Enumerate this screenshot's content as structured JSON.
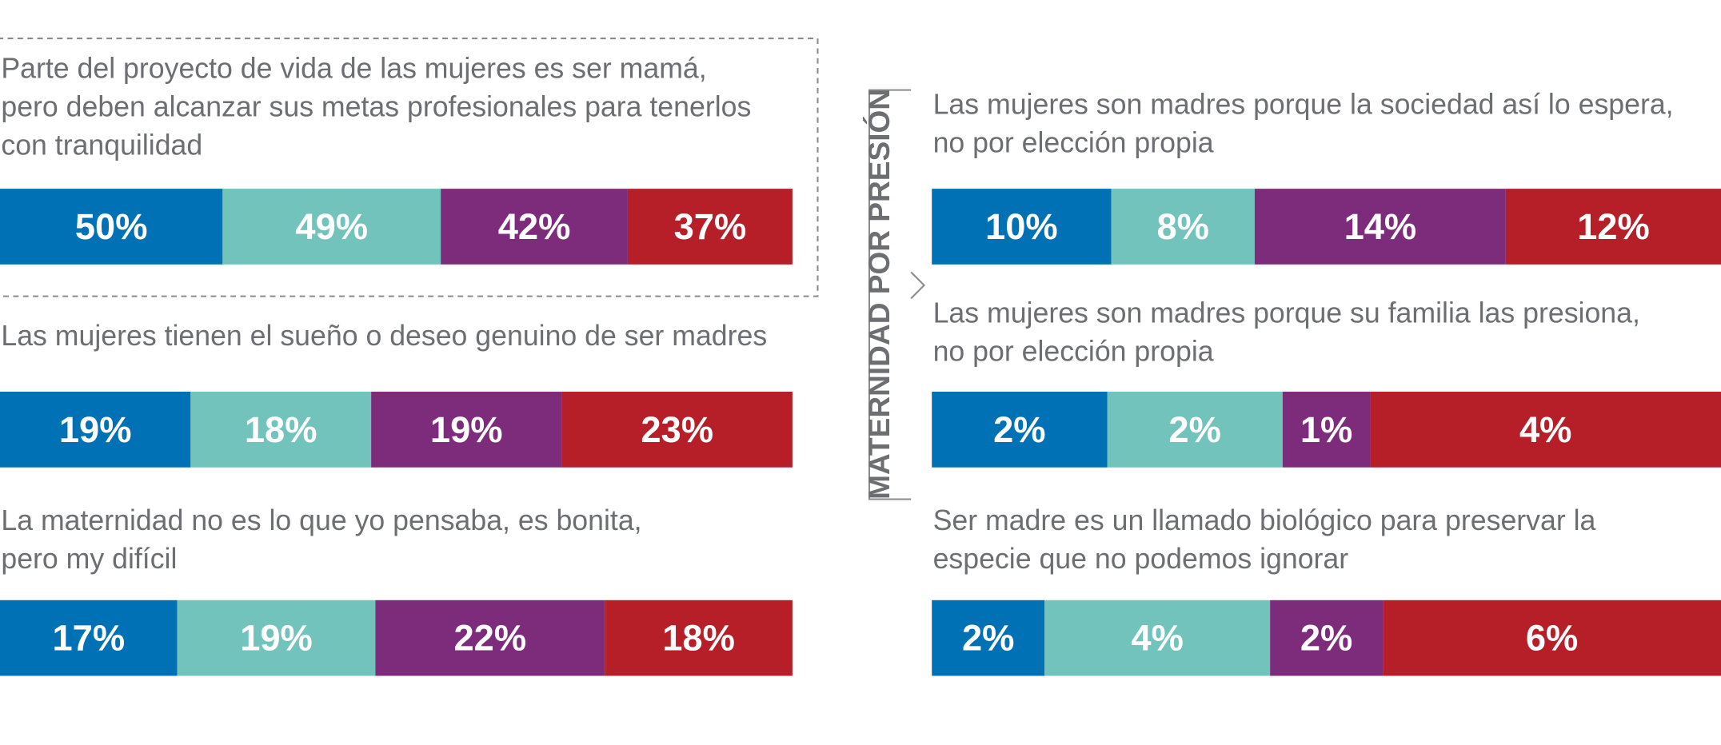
{
  "chart_data": {
    "type": "stacked-bar",
    "colors": [
      "#0071b4",
      "#72c3bc",
      "#7d2c7c",
      "#b61f27"
    ],
    "annotation": "MATERNIDAD POR PRESIÓN",
    "rows": [
      {
        "title": [
          "Parte del proyecto de vida de las mujeres es ser mamá,",
          "pero deben alcanzar sus metas profesionales para tenerlos",
          "con tranquilidad"
        ],
        "values": [
          50,
          49,
          42,
          37
        ],
        "value_labels": [
          "50%",
          "49%",
          "42%",
          "37%"
        ]
      },
      {
        "title": [
          "Las mujeres tienen el sueño o deseo genuino de ser madres"
        ],
        "values": [
          19,
          18,
          19,
          23
        ],
        "value_labels": [
          "19%",
          "18%",
          "19%",
          "23%"
        ]
      },
      {
        "title": [
          "La maternidad no es lo que yo pensaba, es bonita,",
          "pero my difícil"
        ],
        "values": [
          17,
          19,
          22,
          18
        ],
        "value_labels": [
          "17%",
          "19%",
          "22%",
          "18%"
        ]
      },
      {
        "title": [
          "Las mujeres son madres porque la sociedad así lo espera,",
          "no por elección propia"
        ],
        "values": [
          10,
          8,
          14,
          12
        ],
        "value_labels": [
          "10%",
          "8%",
          "14%",
          "12%"
        ]
      },
      {
        "title": [
          "Las mujeres son madres porque su familia las presiona,",
          "no por elección propia"
        ],
        "values": [
          2,
          2,
          1,
          4
        ],
        "value_labels": [
          "2%",
          "2%",
          "1%",
          "4%"
        ]
      },
      {
        "title": [
          "Ser madre es un llamado biológico para preservar la",
          "especie que no podemos ignorar"
        ],
        "values": [
          2,
          4,
          2,
          6
        ],
        "value_labels": [
          "2%",
          "4%",
          "2%",
          "6%"
        ]
      }
    ]
  }
}
